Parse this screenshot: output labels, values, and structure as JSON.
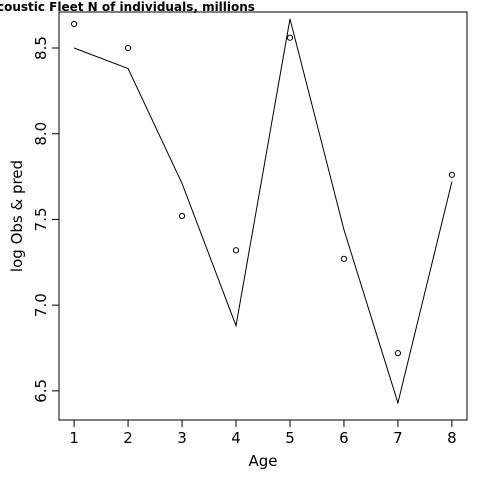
{
  "chart_data": {
    "type": "scatter",
    "title": "coustic Fleet   N of individuals, millions",
    "xlabel": "Age",
    "ylabel": "log Obs & pred",
    "xlim": [
      0.72,
      8.28
    ],
    "ylim": [
      6.33,
      8.71
    ],
    "xticks": [
      1,
      2,
      3,
      4,
      5,
      6,
      7,
      8
    ],
    "yticks": [
      6.5,
      7.0,
      7.5,
      8.0,
      8.5
    ],
    "xtick_labels": [
      "1",
      "2",
      "3",
      "4",
      "5",
      "6",
      "7",
      "8"
    ],
    "ytick_labels": [
      "6.5",
      "7.0",
      "7.5",
      "8.0",
      "8.5"
    ],
    "grid": false,
    "series": [
      {
        "kind": "points",
        "marker": "open-circle",
        "x": [
          1,
          2,
          3,
          4,
          5,
          6,
          7,
          8
        ],
        "y": [
          8.64,
          8.5,
          7.52,
          7.32,
          8.56,
          7.27,
          6.72,
          7.76
        ]
      },
      {
        "kind": "line",
        "x": [
          1,
          2,
          3,
          4,
          5,
          6,
          7,
          8
        ],
        "y": [
          8.5,
          8.38,
          7.71,
          6.88,
          8.67,
          7.44,
          6.43,
          7.72
        ]
      }
    ]
  }
}
